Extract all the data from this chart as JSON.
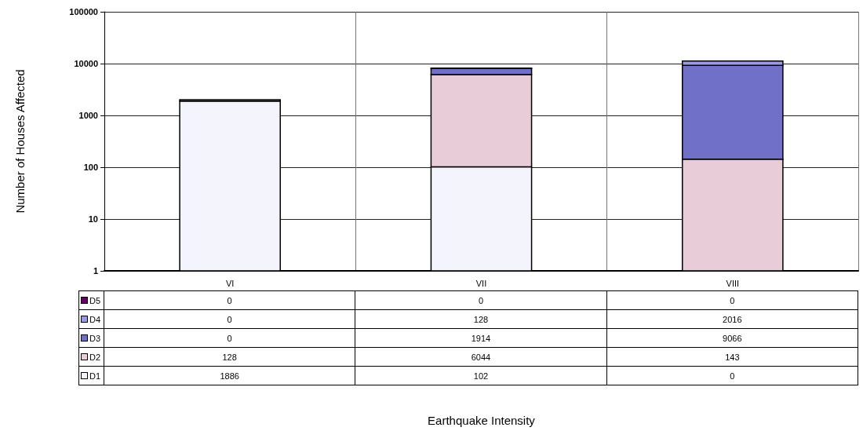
{
  "chart_data": {
    "type": "bar",
    "stacked": true,
    "log": "y",
    "annotations": [
      "Earthquake Intensity"
    ],
    "ylabel": "Number of Houses Affected",
    "categories": [
      "VI",
      "VII",
      "VIII"
    ],
    "series": [
      {
        "name": "D1",
        "color": "#f4f4fc",
        "values": [
          1886,
          102,
          null
        ],
        "value_labels": [
          "1886",
          "102",
          "0"
        ]
      },
      {
        "name": "D2",
        "color": "#e8ccd8",
        "values": [
          128,
          6044,
          143
        ],
        "value_labels": [
          "128",
          "6044",
          "143"
        ]
      },
      {
        "name": "D3",
        "color": "#7070c8",
        "values": [
          null,
          1914,
          9066
        ],
        "value_labels": [
          "0",
          "1914",
          "9066"
        ]
      },
      {
        "name": "D4",
        "color": "#9a9ae0",
        "values": [
          null,
          128,
          2016
        ],
        "value_labels": [
          "0",
          "128",
          "2016"
        ]
      },
      {
        "name": "D5",
        "color": "#660066",
        "values": [
          null,
          null,
          null
        ],
        "value_labels": [
          "0",
          "0",
          "0"
        ]
      }
    ],
    "ylim": [
      1,
      100000
    ],
    "yticks": [
      1,
      10,
      100,
      1000,
      10000,
      100000
    ],
    "grid": true,
    "legend": "bottom left"
  }
}
